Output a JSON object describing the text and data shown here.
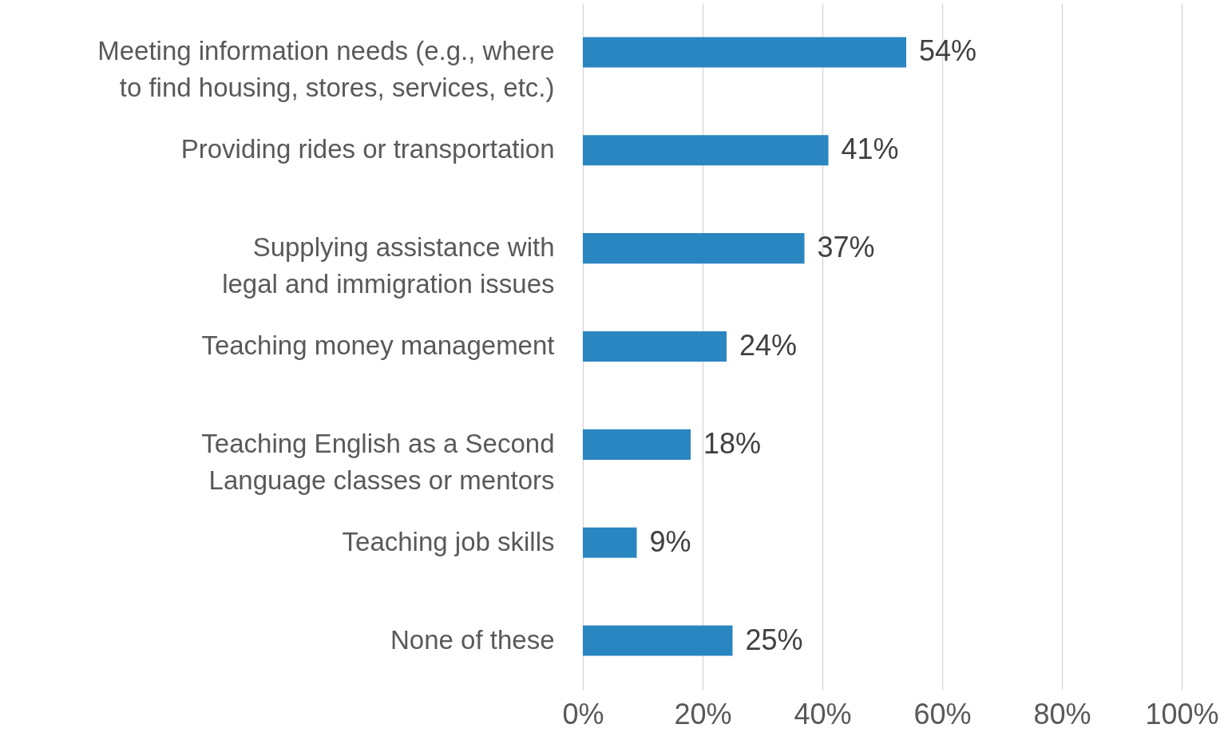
{
  "chart_data": {
    "type": "bar",
    "orientation": "horizontal",
    "categories": [
      "Meeting information needs (e.g., where to find housing, stores, services, etc.)",
      "Providing rides or transportation",
      "Supplying assistance with legal and immigration issues",
      "Teaching money management",
      "Teaching English as a Second Language classes or mentors",
      "Teaching job skills",
      "None of these"
    ],
    "values": [
      54,
      41,
      37,
      24,
      18,
      9,
      25
    ],
    "value_labels": [
      "54%",
      "41%",
      "37%",
      "24%",
      "18%",
      "9%",
      "25%"
    ],
    "color": "#2a86c0",
    "xlim": [
      0,
      100
    ],
    "xticks": [
      {
        "value": 0,
        "label": "0%"
      },
      {
        "value": 20,
        "label": "20%"
      },
      {
        "value": 40,
        "label": "40%"
      },
      {
        "value": 60,
        "label": "60%"
      },
      {
        "value": 80,
        "label": "80%"
      },
      {
        "value": 100,
        "label": "100%"
      }
    ],
    "grid": "x"
  }
}
